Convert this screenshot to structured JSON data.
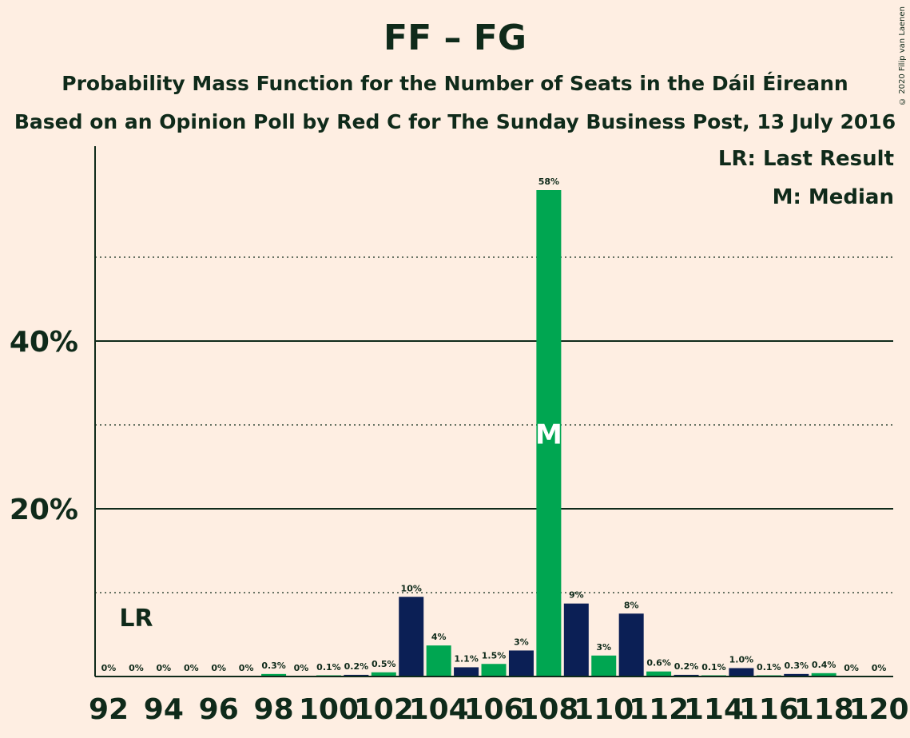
{
  "chart_data": {
    "type": "bar",
    "title": "FF – FG",
    "subtitle": "Probability Mass Function for the Number of Seats in the Dáil Éireann",
    "subtitle2": "Based on an Opinion Poll by Red C for The Sunday Business Post, 13 July 2016",
    "copyright": "© 2020 Filip van Laenen",
    "legend": {
      "last_result": "LR: Last Result",
      "median": "M: Median"
    },
    "ylim": [
      0,
      63
    ],
    "yticks_major": [
      20,
      40
    ],
    "ytick_labels": [
      "20%",
      "40%"
    ],
    "yticks_minor": [
      10,
      30,
      50
    ],
    "x": [
      92,
      93,
      94,
      95,
      96,
      97,
      98,
      99,
      100,
      101,
      102,
      103,
      104,
      105,
      106,
      107,
      108,
      109,
      110,
      111,
      112,
      113,
      114,
      115,
      116,
      117,
      118,
      119,
      120
    ],
    "values": [
      0,
      0,
      0,
      0,
      0,
      0,
      0.3,
      0,
      0.1,
      0.2,
      0.5,
      9.5,
      3.7,
      1.1,
      1.5,
      3.1,
      58,
      8.7,
      2.5,
      7.5,
      0.6,
      0.2,
      0.1,
      1.0,
      0.1,
      0.3,
      0.4,
      0,
      0
    ],
    "labels": [
      "0%",
      "0%",
      "0%",
      "0%",
      "0%",
      "0%",
      "0.3%",
      "0%",
      "0.1%",
      "0.2%",
      "0.5%",
      "10%",
      "4%",
      "1.1%",
      "1.5%",
      "3%",
      "58%",
      "9%",
      "3%",
      "8%",
      "0.6%",
      "0.2%",
      "0.1%",
      "1.0%",
      "0.1%",
      "0.3%",
      "0.4%",
      "0%",
      "0%"
    ],
    "xtick_labels": [
      "92",
      "94",
      "96",
      "98",
      "100",
      "102",
      "104",
      "106",
      "108",
      "110",
      "112",
      "114",
      "116",
      "118",
      "120"
    ],
    "last_result_seat": 93,
    "last_result_label": "LR",
    "median_seat": 108,
    "median_label": "M",
    "colors": {
      "even": "#00A651",
      "odd": "#0B1F55",
      "background": "#FEEEE2",
      "text": "#0F2A1A"
    }
  }
}
